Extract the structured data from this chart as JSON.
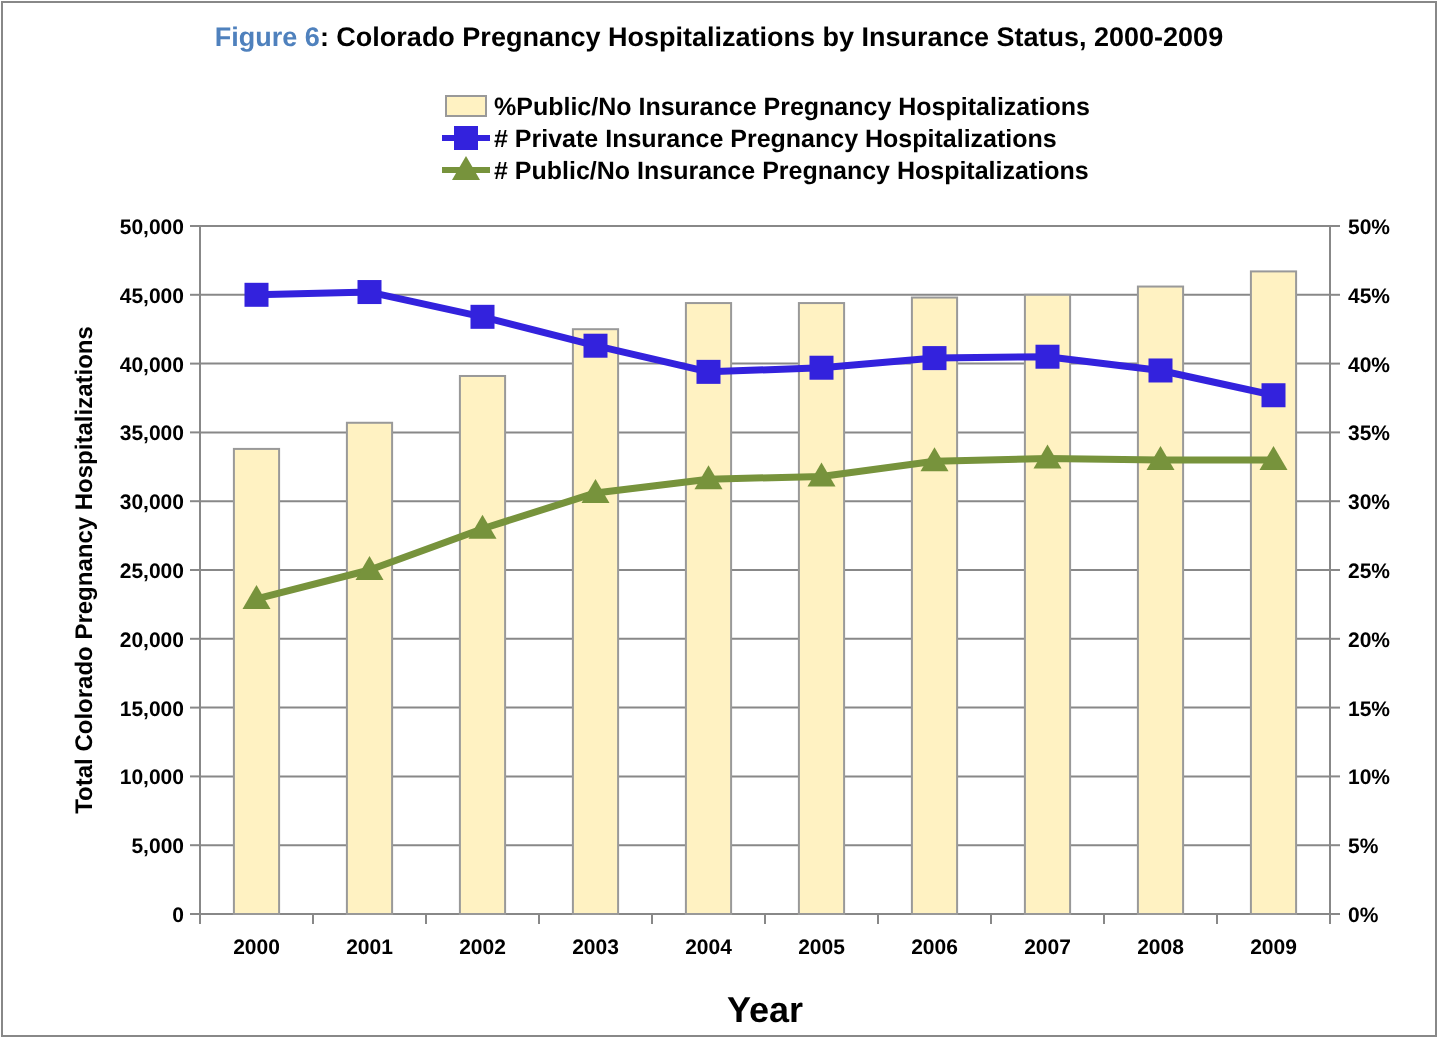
{
  "chart_data": {
    "type": "bar",
    "title": "Figure 6: Colorado Pregnancy Hospitalizations by Insurance Status, 2000-2009",
    "xlabel": "Year",
    "ylabel": "Total Colorado Pregnancy Hospitalizations",
    "categories": [
      "2000",
      "2001",
      "2002",
      "2003",
      "2004",
      "2005",
      "2006",
      "2007",
      "2008",
      "2009"
    ],
    "series": [
      {
        "name": "%Public/No Insurance Pregnancy Hospitalizations",
        "axis": "y2",
        "color": "#fff2c2",
        "values": [
          33.8,
          35.7,
          39.1,
          42.5,
          44.4,
          44.4,
          44.8,
          45.0,
          45.6,
          46.7
        ]
      },
      {
        "name": "# Private Insurance Pregnancy Hospitalizations",
        "type": "line",
        "marker": "square",
        "color": "#3322dd",
        "values": [
          45000,
          45200,
          43400,
          41300,
          39400,
          39700,
          40400,
          40500,
          39500,
          37700
        ]
      },
      {
        "name": "# Public/No Insurance Pregnancy Hospitalizations",
        "type": "line",
        "marker": "triangle",
        "color": "#77933c",
        "values": [
          22900,
          25000,
          28000,
          30600,
          31600,
          31800,
          32900,
          33100,
          33000,
          33000
        ]
      }
    ],
    "ylim": [
      0,
      50000
    ],
    "yticks": [
      {
        "value": 0,
        "label": "0"
      },
      {
        "value": 5000,
        "label": "5,000"
      },
      {
        "value": 10000,
        "label": "10,000"
      },
      {
        "value": 15000,
        "label": "15,000"
      },
      {
        "value": 20000,
        "label": "20,000"
      },
      {
        "value": 25000,
        "label": "25,000"
      },
      {
        "value": 30000,
        "label": "30,000"
      },
      {
        "value": 35000,
        "label": "35,000"
      },
      {
        "value": 40000,
        "label": "40,000"
      },
      {
        "value": 45000,
        "label": "45,000"
      },
      {
        "value": 50000,
        "label": "50,000"
      }
    ],
    "y2lim": [
      0,
      50
    ],
    "y2ticks": [
      {
        "value": 0,
        "label": "0%"
      },
      {
        "value": 5,
        "label": "5%"
      },
      {
        "value": 10,
        "label": "10%"
      },
      {
        "value": 15,
        "label": "15%"
      },
      {
        "value": 20,
        "label": "20%"
      },
      {
        "value": 25,
        "label": "25%"
      },
      {
        "value": 30,
        "label": "30%"
      },
      {
        "value": 35,
        "label": "35%"
      },
      {
        "value": 40,
        "label": "40%"
      },
      {
        "value": 45,
        "label": "45%"
      },
      {
        "value": 50,
        "label": "50%"
      }
    ],
    "grid": "y",
    "legend": "top"
  }
}
